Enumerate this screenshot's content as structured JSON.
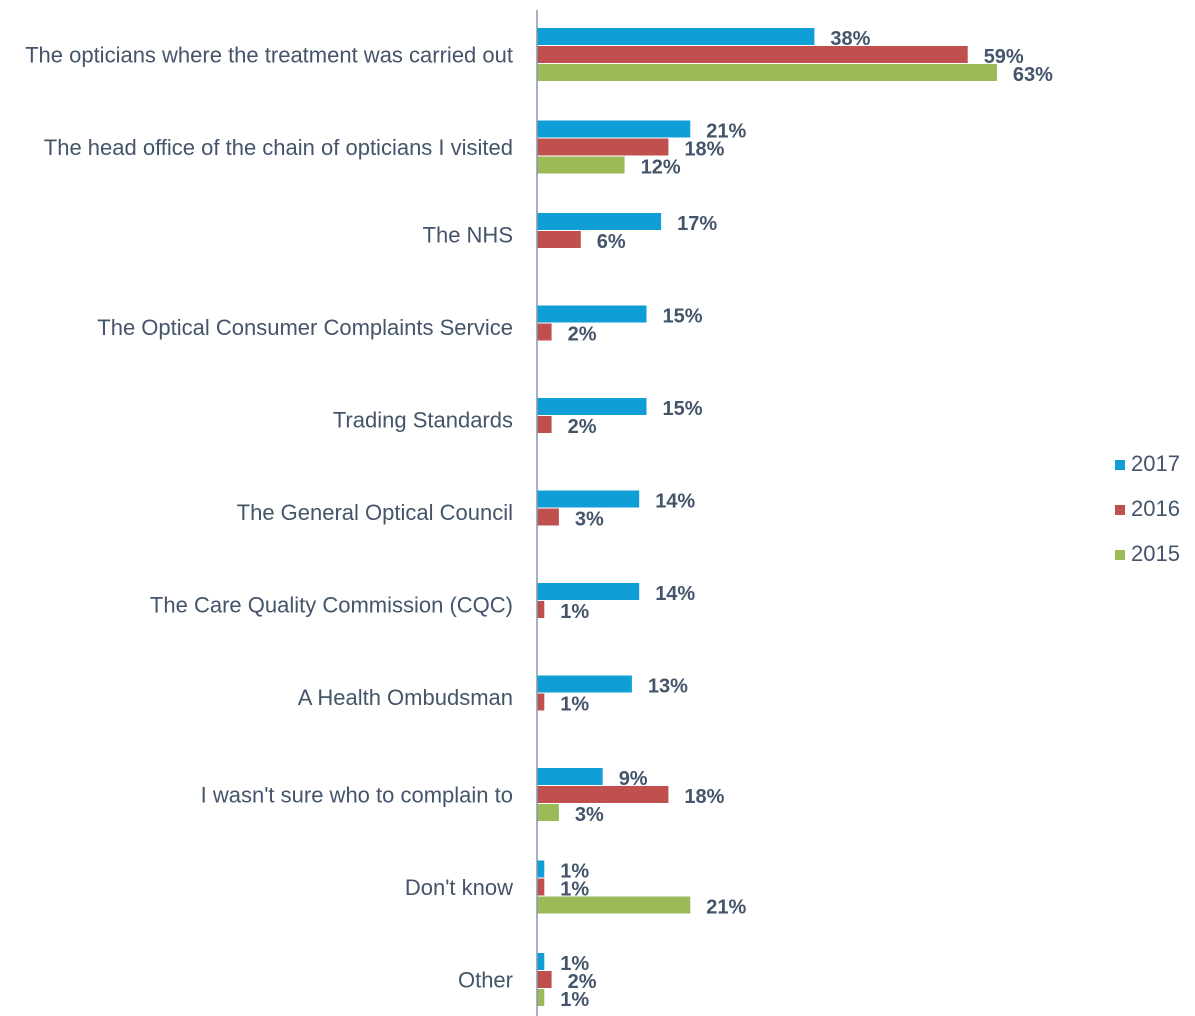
{
  "chart_data": {
    "type": "bar",
    "orientation": "horizontal",
    "categories": [
      "The opticians where the treatment was carried out",
      "The head office of the chain of opticians I visited",
      "The NHS",
      "The Optical Consumer Complaints Service",
      "Trading Standards",
      "The General Optical Council",
      "The Care Quality Commission (CQC)",
      "A Health Ombudsman",
      "I wasn't sure who to complain to",
      "Don't know",
      "Other"
    ],
    "series": [
      {
        "name": "2017",
        "color": "#0f9ed5",
        "values": [
          38,
          21,
          17,
          15,
          15,
          14,
          14,
          13,
          9,
          1,
          1
        ]
      },
      {
        "name": "2016",
        "color": "#c0504d",
        "values": [
          59,
          18,
          6,
          2,
          2,
          3,
          1,
          1,
          18,
          1,
          2
        ]
      },
      {
        "name": "2015",
        "color": "#9bbb59",
        "values": [
          63,
          12,
          null,
          null,
          null,
          null,
          null,
          null,
          3,
          21,
          1
        ]
      }
    ],
    "value_suffix": "%",
    "xlim": [
      0,
      100
    ],
    "grid": false,
    "legend_position": "right"
  },
  "colors": {
    "axis": "#8497b0",
    "text": "#44546a"
  }
}
